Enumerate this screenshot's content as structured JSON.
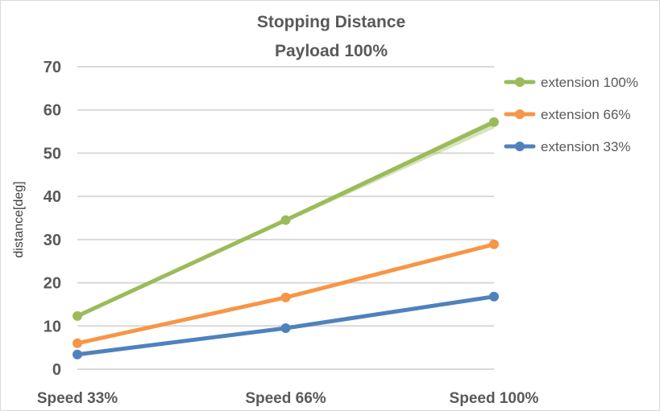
{
  "chart_data": {
    "type": "line",
    "title": [
      "Stopping Distance",
      "Payload 100%"
    ],
    "xlabel": "",
    "ylabel": "distance[deg]",
    "categories": [
      "Speed 33%",
      "Speed 66%",
      "Speed 100%"
    ],
    "ylim": [
      0,
      70
    ],
    "yticks": [
      "0",
      "10",
      "20",
      "30",
      "40",
      "50",
      "60",
      "70"
    ],
    "grid": true,
    "legend_position": "right",
    "series": [
      {
        "name": "extension 100%",
        "color": "#9bbb59",
        "values": [
          12.3,
          34.5,
          57.2
        ],
        "faint_band": {
          "lower": [
            11.9,
            34.0,
            55.7
          ],
          "upper": [
            12.7,
            34.9,
            57.9
          ]
        }
      },
      {
        "name": "extension 66%",
        "color": "#f79646",
        "values": [
          6.0,
          16.6,
          28.9
        ]
      },
      {
        "name": "extension 33%",
        "color": "#4f81bd",
        "values": [
          3.4,
          9.5,
          16.8
        ]
      }
    ]
  }
}
